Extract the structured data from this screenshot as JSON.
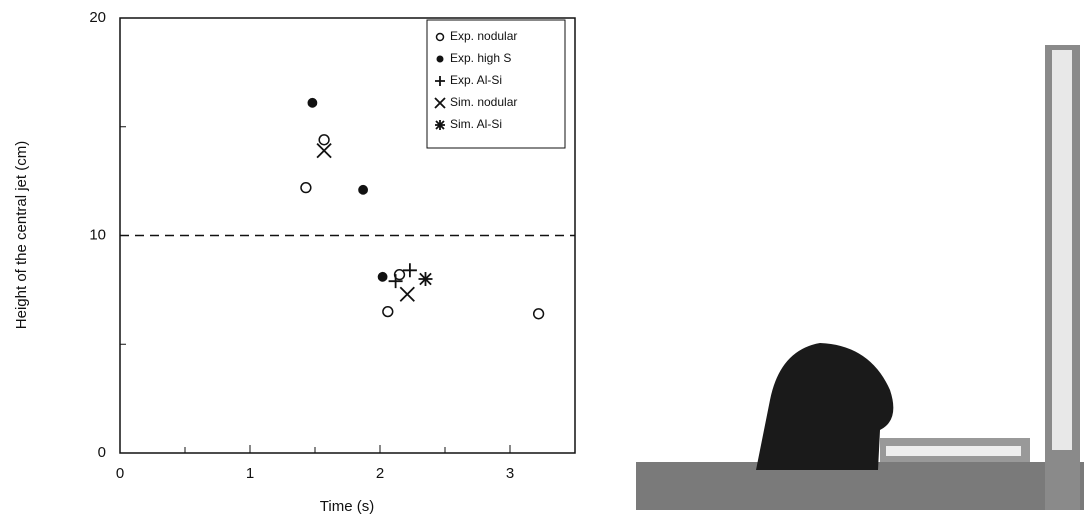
{
  "chart_data": {
    "type": "scatter",
    "xlabel": "Time (s)",
    "ylabel": "Height of the central jet (cm)",
    "xlim": [
      0,
      3.5
    ],
    "ylim": [
      0,
      20
    ],
    "xticks": [
      0,
      1,
      2,
      3
    ],
    "yticks": [
      0,
      10,
      20
    ],
    "xticks_minor": [
      0.5,
      1.5,
      2.5
    ],
    "yticks_minor": [
      5,
      15
    ],
    "hline": 10,
    "legend": "upper right",
    "series": [
      {
        "name": "Exp. nodular",
        "color": "#111111",
        "marker": "circle-open",
        "x": [
          1.43,
          1.57,
          2.06,
          2.15,
          3.22
        ],
        "values": [
          12.2,
          14.4,
          6.5,
          8.2,
          6.4
        ]
      },
      {
        "name": "Exp. high S",
        "color": "#111111",
        "marker": "circle-filled",
        "x": [
          1.48,
          1.87,
          2.02
        ],
        "values": [
          16.1,
          12.1,
          8.1
        ]
      },
      {
        "name": "Exp. Al-Si",
        "color": "#111111",
        "marker": "plus",
        "x": [
          2.12,
          2.23
        ],
        "values": [
          7.9,
          8.4
        ]
      },
      {
        "name": "Sim. nodular",
        "color": "#111111",
        "marker": "cross",
        "x": [
          1.57,
          2.21
        ],
        "values": [
          13.9,
          7.3
        ]
      },
      {
        "name": "Sim. Al-Si",
        "color": "#111111",
        "marker": "star",
        "x": [
          2.35
        ],
        "values": [
          8.0
        ]
      }
    ]
  }
}
